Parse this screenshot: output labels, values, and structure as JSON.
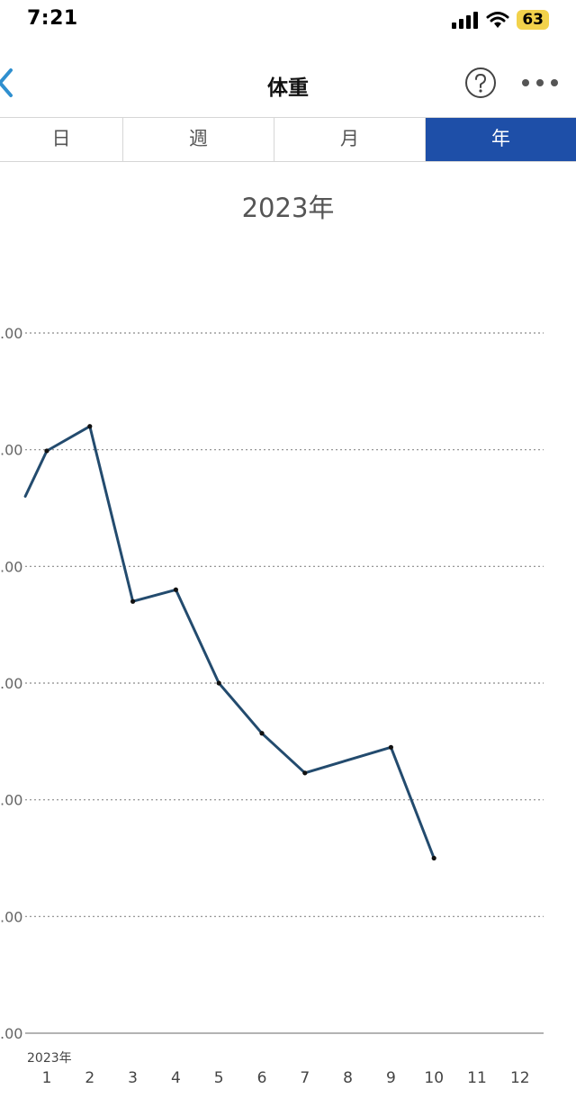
{
  "status_bar": {
    "time": "7:21",
    "battery": "63"
  },
  "nav": {
    "title": "体重"
  },
  "tabs": [
    {
      "label": "日",
      "active": false
    },
    {
      "label": "週",
      "active": false
    },
    {
      "label": "月",
      "active": false
    },
    {
      "label": "年",
      "active": true
    }
  ],
  "chart_title": "2023年",
  "colors": {
    "accent": "#1e4fa8",
    "line": "#234b6e",
    "back_icon": "#2f8fcf"
  },
  "chart_data": {
    "type": "line",
    "title": "2023年",
    "xlabel": "",
    "ylabel": "",
    "x_axis_year_label": "2023年",
    "categories": [
      "1",
      "2",
      "3",
      "4",
      "5",
      "6",
      "7",
      "8",
      "9",
      "10",
      "11",
      "12"
    ],
    "y_tick_labels": [
      ".00",
      ".00",
      ".00",
      ".00",
      ".00",
      ".00",
      ".00"
    ],
    "ylim": [
      0,
      6
    ],
    "grid": true,
    "series": [
      {
        "points": [
          {
            "x": 0.5,
            "y": 4.6
          },
          {
            "x": 1,
            "y": 4.99
          },
          {
            "x": 2,
            "y": 5.2
          },
          {
            "x": 3,
            "y": 3.7
          },
          {
            "x": 4,
            "y": 3.8
          },
          {
            "x": 5,
            "y": 3.0
          },
          {
            "x": 6,
            "y": 2.57
          },
          {
            "x": 7,
            "y": 2.23
          },
          {
            "x": 9,
            "y": 2.45
          },
          {
            "x": 10,
            "y": 1.5
          }
        ]
      }
    ]
  }
}
